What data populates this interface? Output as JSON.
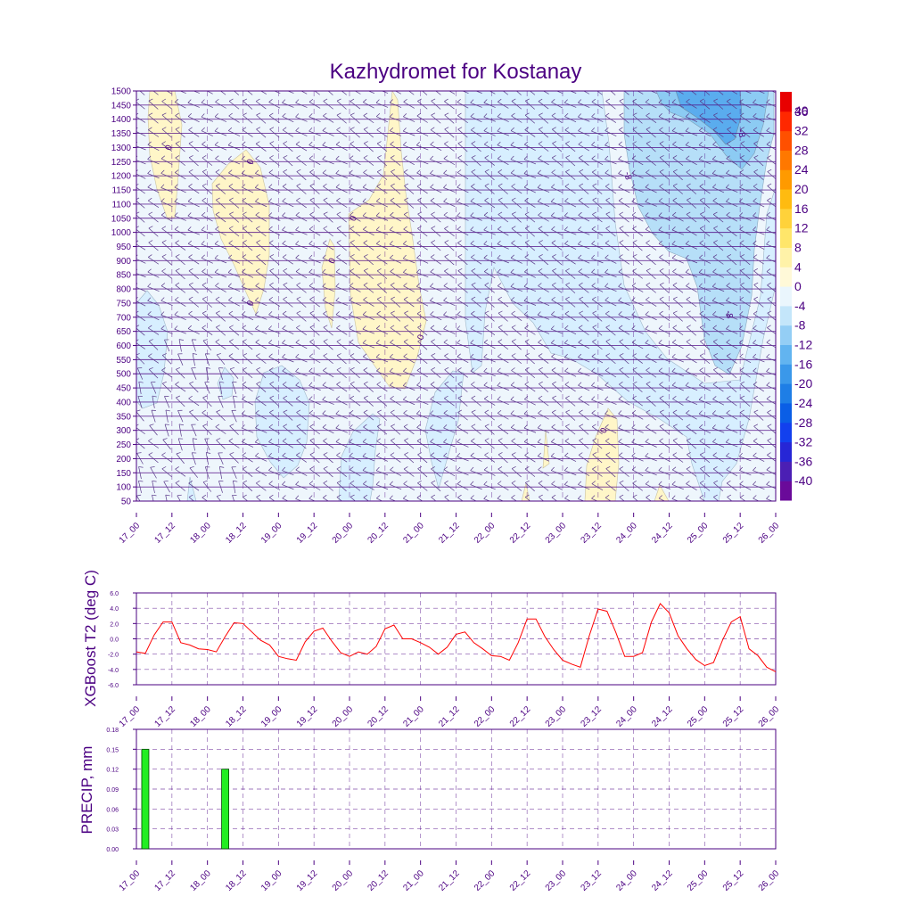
{
  "title": "Kazhydromet for Kostanay",
  "colors": {
    "axis": "#4b0082",
    "t2_line": "#ff0000",
    "precip_bar": "#22ee22",
    "precip_edge": "#004400",
    "warm_fill": "#fff6c8",
    "cool_fill": "#d7efff",
    "cold_fill": "#b6dff8",
    "colder_fill": "#8ccbf3",
    "coldest_fill": "#5aacee",
    "background_fill": "#eef6fc"
  },
  "time_labels": [
    "17_00",
    "17_12",
    "18_00",
    "18_12",
    "19_00",
    "19_12",
    "20_00",
    "20_12",
    "21_00",
    "21_12",
    "22_00",
    "22_12",
    "23_00",
    "23_12",
    "24_00",
    "24_12",
    "25_00",
    "25_12",
    "26_00"
  ],
  "chart_data": [
    {
      "type": "heatmap",
      "name": "upper-air temperature and wind cross-section",
      "x_range": [
        0,
        18
      ],
      "y_range": [
        50,
        1500
      ],
      "y_ticks": [
        50,
        100,
        150,
        200,
        250,
        300,
        350,
        400,
        450,
        500,
        550,
        600,
        650,
        700,
        750,
        800,
        850,
        900,
        950,
        1000,
        1050,
        1100,
        1150,
        1200,
        1250,
        1300,
        1350,
        1400,
        1450,
        1500
      ],
      "colorbar": {
        "levels": [
          "-40",
          "-36",
          "-32",
          "-28",
          "-24",
          "-20",
          "-16",
          "-12",
          "-8",
          "-4",
          "0",
          "4",
          "8",
          "12",
          "16",
          "20",
          "24",
          "28",
          "32",
          "36",
          "40"
        ],
        "colors": [
          "#6a0a9a",
          "#4b1fb4",
          "#2626d6",
          "#1240ee",
          "#0a5ee6",
          "#1e7ee6",
          "#3a98ea",
          "#62b4f0",
          "#94cef5",
          "#c4e6fa",
          "#eaf6fd",
          "#fff9d8",
          "#fff2a8",
          "#ffe66a",
          "#ffd23a",
          "#ffbb10",
          "#ff9a00",
          "#ff7800",
          "#ff5000",
          "#ff2800",
          "#e80000"
        ]
      },
      "contour_labels": [
        {
          "text": "0",
          "x": 0.9,
          "y": 1300
        },
        {
          "text": "0",
          "x": 3.2,
          "y": 1250
        },
        {
          "text": "0",
          "x": 3.2,
          "y": 750
        },
        {
          "text": "0",
          "x": 5.5,
          "y": 900
        },
        {
          "text": "0",
          "x": 6.1,
          "y": 1050
        },
        {
          "text": "0",
          "x": 8.0,
          "y": 630
        },
        {
          "text": "0",
          "x": 13.15,
          "y": 300
        },
        {
          "text": "-8",
          "x": 13.85,
          "y": 1200
        },
        {
          "text": "-8",
          "x": 17.05,
          "y": 1350
        },
        {
          "text": "-8",
          "x": 16.7,
          "y": 710
        }
      ]
    },
    {
      "type": "line",
      "name": "XGBoost T2",
      "ylabel": "XGBoost T2 (deg C)",
      "ylim": [
        -6,
        6
      ],
      "y_ticks": [
        "-6.0",
        "-4.0",
        "-2.0",
        "0.0",
        "2.0",
        "4.0",
        "6.0"
      ],
      "x_step": 0.25,
      "values": [
        -1.7,
        -1.9,
        0.5,
        2.2,
        2.2,
        -0.5,
        -0.8,
        -1.3,
        -1.4,
        -1.7,
        0.3,
        2.1,
        2.0,
        0.9,
        -0.2,
        -0.8,
        -2.3,
        -2.6,
        -2.8,
        -0.4,
        1.0,
        1.4,
        -0.3,
        -1.8,
        -2.3,
        -1.7,
        -2.0,
        -1.0,
        1.3,
        1.8,
        0.0,
        0.0,
        -0.5,
        -1.1,
        -2.0,
        -1.1,
        0.6,
        0.9,
        -0.5,
        -1.3,
        -2.2,
        -2.3,
        -2.8,
        -0.5,
        2.6,
        2.6,
        0.3,
        -1.4,
        -2.8,
        -3.3,
        -3.7,
        0.4,
        3.9,
        3.6,
        0.8,
        -2.3,
        -2.3,
        -1.8,
        2.2,
        4.6,
        3.4,
        0.4,
        -1.3,
        -2.7,
        -3.5,
        -3.1,
        -0.2,
        2.2,
        2.9,
        -1.3,
        -2.2,
        -3.7,
        -4.3
      ]
    },
    {
      "type": "bar",
      "name": "precipitation",
      "ylabel": "PRECIP, mm",
      "ylim": [
        0,
        0.18
      ],
      "y_ticks": [
        "0.00",
        "0.03",
        "0.06",
        "0.09",
        "0.12",
        "0.15",
        "0.18"
      ],
      "x": [
        0.25,
        2.5
      ],
      "values": [
        0.15,
        0.12
      ]
    }
  ]
}
